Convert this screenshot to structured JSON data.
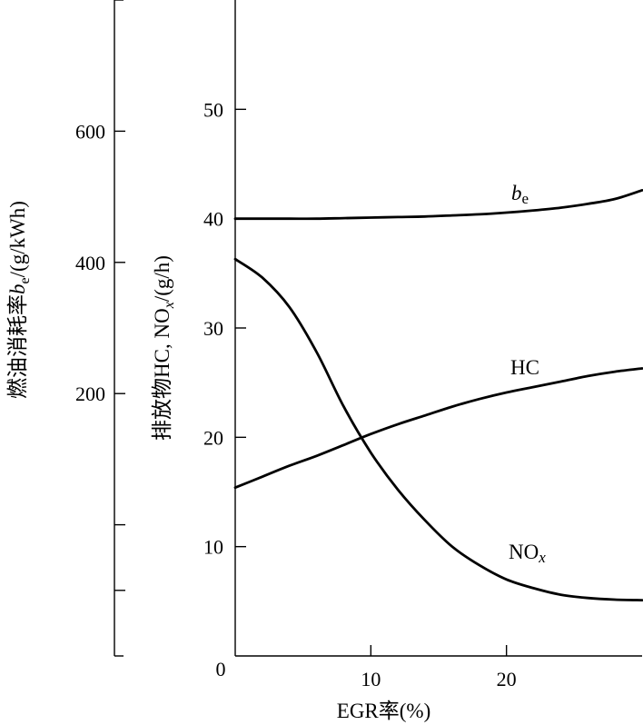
{
  "chart_data": {
    "type": "line",
    "xlabel": {
      "text": "EGR率(%)"
    },
    "x_axis": {
      "range": [
        0,
        30
      ],
      "ticks": [
        10,
        20
      ],
      "tick_labels": [
        "10",
        "20"
      ]
    },
    "origin_label": "0",
    "y_axis_left": {
      "label_parts": {
        "pre": "燃油消耗率",
        "sym": "b",
        "sub": "e",
        "post": "/(g/kWh)"
      },
      "range": [
        -200,
        800
      ],
      "ticks": [
        600,
        400,
        200,
        0,
        -100
      ],
      "tick_labels": [
        "600",
        "400",
        "200",
        "",
        ""
      ]
    },
    "y_axis_right": {
      "label_parts": {
        "pre": "排放物HC, NO",
        "sub": "x",
        "post": "/(g/h)"
      },
      "range": [
        0,
        60
      ],
      "ticks": [
        50,
        40,
        30,
        20,
        10
      ],
      "tick_labels": [
        "50",
        "40",
        "30",
        "20",
        "10"
      ]
    },
    "series": [
      {
        "name": "b",
        "name_sub": "e",
        "axis": "right",
        "x": [
          0,
          2,
          4,
          6,
          8,
          10,
          12,
          14,
          16,
          18,
          20,
          22,
          24,
          26,
          28,
          30
        ],
        "y": [
          40.0,
          40.0,
          40.0,
          40.0,
          40.05,
          40.1,
          40.15,
          40.2,
          40.3,
          40.4,
          40.55,
          40.75,
          41.0,
          41.35,
          41.8,
          42.6
        ]
      },
      {
        "name": "HC",
        "axis": "right",
        "x": [
          0,
          2,
          4,
          6,
          8,
          10,
          12,
          14,
          16,
          18,
          20,
          22,
          24,
          26,
          28,
          30
        ],
        "y": [
          15.4,
          16.4,
          17.4,
          18.3,
          19.3,
          20.3,
          21.2,
          22.0,
          22.8,
          23.5,
          24.1,
          24.6,
          25.1,
          25.6,
          26.0,
          26.3
        ]
      },
      {
        "name": "NO",
        "name_sub": "x",
        "axis": "right",
        "x": [
          0,
          2,
          4,
          6,
          8,
          10,
          12,
          14,
          16,
          18,
          20,
          22,
          24,
          26,
          28,
          30
        ],
        "y": [
          36.3,
          34.6,
          31.9,
          27.8,
          22.8,
          18.6,
          15.2,
          12.4,
          10.0,
          8.3,
          7.0,
          6.2,
          5.6,
          5.3,
          5.15,
          5.1
        ]
      }
    ],
    "grid": false,
    "legend": "none"
  }
}
